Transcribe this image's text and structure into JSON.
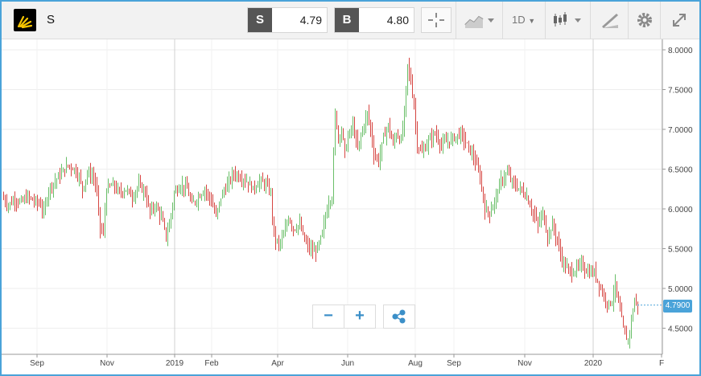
{
  "toolbar": {
    "symbol": "S",
    "logo_icon": "sprint-logo",
    "sell": {
      "tag": "S",
      "value": "4.79"
    },
    "buy": {
      "tag": "B",
      "value": "4.80"
    },
    "interval": "1D",
    "icons": [
      "crosshair-icon",
      "line-chart-icon",
      "candlestick-icon",
      "draw-icon",
      "gear-icon",
      "expand-icon"
    ]
  },
  "chart_data": {
    "type": "candlestick",
    "x_labels": [
      "Sep",
      "Nov",
      "2019",
      "Feb",
      "Apr",
      "Jun",
      "Aug",
      "Sep",
      "Nov",
      "2020",
      "F"
    ],
    "y_ticks": [
      "8.0000",
      "7.5000",
      "7.0000",
      "6.5000",
      "6.0000",
      "5.5000",
      "5.0000",
      "4.5000"
    ],
    "ylim": [
      4.25,
      8.1
    ],
    "last_price": "4.7900",
    "up_color": "#6abf69",
    "down_color": "#d64541",
    "close_path": [
      [
        0,
        6.15
      ],
      [
        8,
        6.05
      ],
      [
        16,
        6.12
      ],
      [
        24,
        6.08
      ],
      [
        32,
        6.15
      ],
      [
        40,
        6.1
      ],
      [
        48,
        6.05
      ],
      [
        52,
        5.95
      ],
      [
        58,
        6.25
      ],
      [
        66,
        6.35
      ],
      [
        74,
        6.45
      ],
      [
        82,
        6.55
      ],
      [
        90,
        6.5
      ],
      [
        96,
        6.4
      ],
      [
        100,
        6.25
      ],
      [
        106,
        6.45
      ],
      [
        114,
        6.4
      ],
      [
        118,
        6.2
      ],
      [
        122,
        5.75
      ],
      [
        126,
        5.7
      ],
      [
        130,
        6.25
      ],
      [
        138,
        6.3
      ],
      [
        146,
        6.2
      ],
      [
        154,
        6.25
      ],
      [
        162,
        6.15
      ],
      [
        170,
        6.3
      ],
      [
        178,
        6.2
      ],
      [
        184,
        5.95
      ],
      [
        190,
        6.05
      ],
      [
        198,
        5.9
      ],
      [
        204,
        5.65
      ],
      [
        208,
        5.8
      ],
      [
        214,
        6.2
      ],
      [
        222,
        6.3
      ],
      [
        230,
        6.25
      ],
      [
        236,
        6.05
      ],
      [
        244,
        6.15
      ],
      [
        252,
        6.25
      ],
      [
        260,
        6.1
      ],
      [
        266,
        5.9
      ],
      [
        272,
        6.15
      ],
      [
        280,
        6.3
      ],
      [
        288,
        6.45
      ],
      [
        296,
        6.4
      ],
      [
        304,
        6.35
      ],
      [
        312,
        6.25
      ],
      [
        320,
        6.35
      ],
      [
        328,
        6.3
      ],
      [
        334,
        6.2
      ],
      [
        338,
        5.65
      ],
      [
        344,
        5.55
      ],
      [
        350,
        5.65
      ],
      [
        356,
        5.9
      ],
      [
        362,
        5.75
      ],
      [
        370,
        5.8
      ],
      [
        376,
        5.6
      ],
      [
        382,
        5.5
      ],
      [
        388,
        5.45
      ],
      [
        394,
        5.55
      ],
      [
        398,
        5.7
      ],
      [
        402,
        5.9
      ],
      [
        406,
        6.1
      ],
      [
        410,
        6.15
      ],
      [
        414,
        7.2
      ],
      [
        418,
        6.9
      ],
      [
        422,
        7.0
      ],
      [
        426,
        6.7
      ],
      [
        430,
        6.9
      ],
      [
        436,
        7.05
      ],
      [
        442,
        6.75
      ],
      [
        448,
        7.0
      ],
      [
        454,
        7.2
      ],
      [
        458,
        7.0
      ],
      [
        462,
        6.7
      ],
      [
        468,
        6.6
      ],
      [
        474,
        6.9
      ],
      [
        480,
        7.05
      ],
      [
        486,
        6.8
      ],
      [
        490,
        6.95
      ],
      [
        496,
        6.85
      ],
      [
        500,
        7.2
      ],
      [
        504,
        7.8
      ],
      [
        508,
        7.6
      ],
      [
        512,
        7.3
      ],
      [
        516,
        6.8
      ],
      [
        522,
        6.7
      ],
      [
        530,
        6.85
      ],
      [
        538,
        6.95
      ],
      [
        546,
        6.8
      ],
      [
        554,
        6.85
      ],
      [
        562,
        6.9
      ],
      [
        570,
        6.95
      ],
      [
        578,
        6.8
      ],
      [
        586,
        6.65
      ],
      [
        594,
        6.4
      ],
      [
        600,
        6.0
      ],
      [
        606,
        5.95
      ],
      [
        612,
        6.1
      ],
      [
        620,
        6.35
      ],
      [
        628,
        6.45
      ],
      [
        636,
        6.3
      ],
      [
        644,
        6.25
      ],
      [
        652,
        6.15
      ],
      [
        660,
        5.95
      ],
      [
        666,
        5.8
      ],
      [
        672,
        5.95
      ],
      [
        678,
        5.65
      ],
      [
        684,
        5.8
      ],
      [
        690,
        5.6
      ],
      [
        696,
        5.35
      ],
      [
        702,
        5.25
      ],
      [
        708,
        5.2
      ],
      [
        714,
        5.25
      ],
      [
        720,
        5.3
      ],
      [
        728,
        5.2
      ],
      [
        736,
        5.2
      ],
      [
        742,
        5.05
      ],
      [
        748,
        4.9
      ],
      [
        754,
        4.8
      ],
      [
        758,
        4.85
      ],
      [
        762,
        5.05
      ],
      [
        766,
        4.8
      ],
      [
        770,
        4.6
      ],
      [
        774,
        4.4
      ],
      [
        778,
        4.35
      ],
      [
        782,
        4.6
      ],
      [
        786,
        4.85
      ],
      [
        790,
        4.79
      ]
    ]
  }
}
